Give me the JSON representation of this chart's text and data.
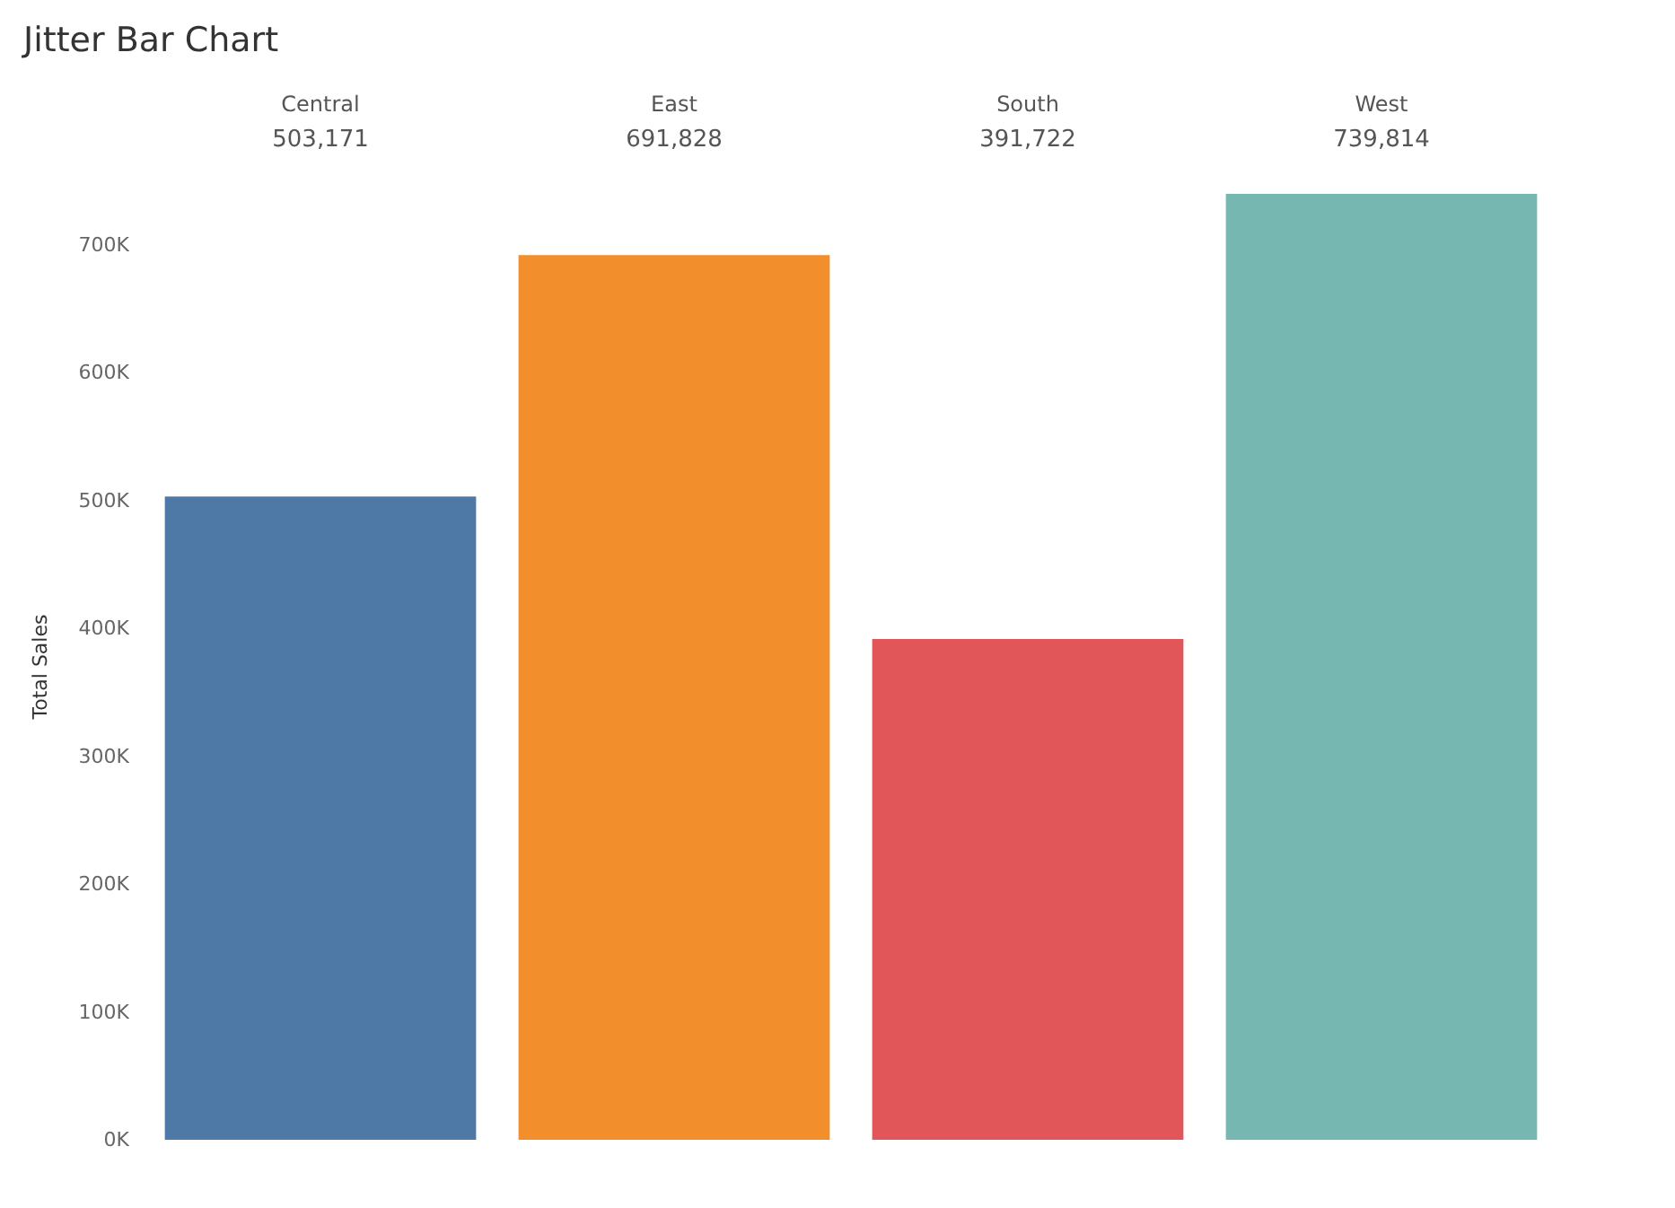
{
  "chart_data": {
    "type": "bar",
    "title": "Jitter Bar Chart",
    "ylabel": "Total Sales",
    "categories": [
      "Central",
      "East",
      "South",
      "West"
    ],
    "values": [
      503171,
      691828,
      391722,
      739814
    ],
    "value_labels": [
      "503,171",
      "691,828",
      "391,722",
      "739,814"
    ],
    "colors": [
      "#4e79a7",
      "#f28e2b",
      "#e15759",
      "#76b7b2"
    ],
    "yticks": [
      {
        "value": 0,
        "label": "0K"
      },
      {
        "value": 100000,
        "label": "100K"
      },
      {
        "value": 200000,
        "label": "200K"
      },
      {
        "value": 300000,
        "label": "300K"
      },
      {
        "value": 400000,
        "label": "400K"
      },
      {
        "value": 500000,
        "label": "500K"
      },
      {
        "value": 600000,
        "label": "600K"
      },
      {
        "value": 700000,
        "label": "700K"
      }
    ],
    "ylim": [
      0,
      739814
    ],
    "grid": false
  }
}
